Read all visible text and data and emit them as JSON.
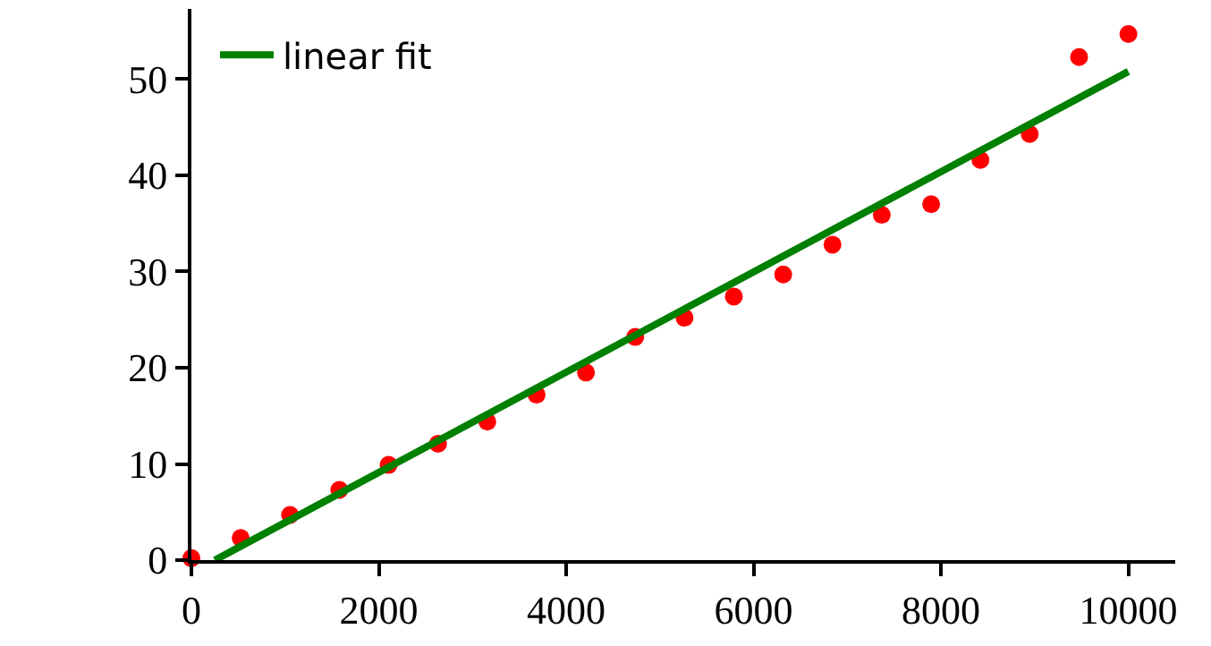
{
  "chart_data": {
    "type": "scatter",
    "x": [
      0,
      526,
      1053,
      1579,
      2105,
      2632,
      3158,
      3684,
      4211,
      4737,
      5263,
      5789,
      6316,
      6842,
      7368,
      7895,
      8421,
      8947,
      9474,
      10000
    ],
    "series": [
      {
        "color": "#ff0000",
        "marker": "circle",
        "values": [
          0.2,
          2.3,
          4.7,
          7.3,
          9.9,
          12.1,
          14.4,
          17.2,
          19.5,
          23.2,
          25.2,
          27.4,
          29.7,
          32.8,
          35.9,
          37.0,
          41.6,
          44.3,
          52.3,
          54.7
        ]
      },
      {
        "type": "line",
        "name": "linear fit",
        "color": "#008000",
        "line_style": "solid",
        "x": [
          250,
          10000
        ],
        "values": [
          0,
          50.8
        ]
      }
    ],
    "xlim": [
      0,
      10500
    ],
    "xticks": [
      0,
      2000,
      4000,
      6000,
      8000,
      10000
    ],
    "ylim": [
      0,
      57.3
    ],
    "yticks": [
      0,
      10,
      20,
      30,
      40,
      50
    ],
    "legend": "top left"
  }
}
